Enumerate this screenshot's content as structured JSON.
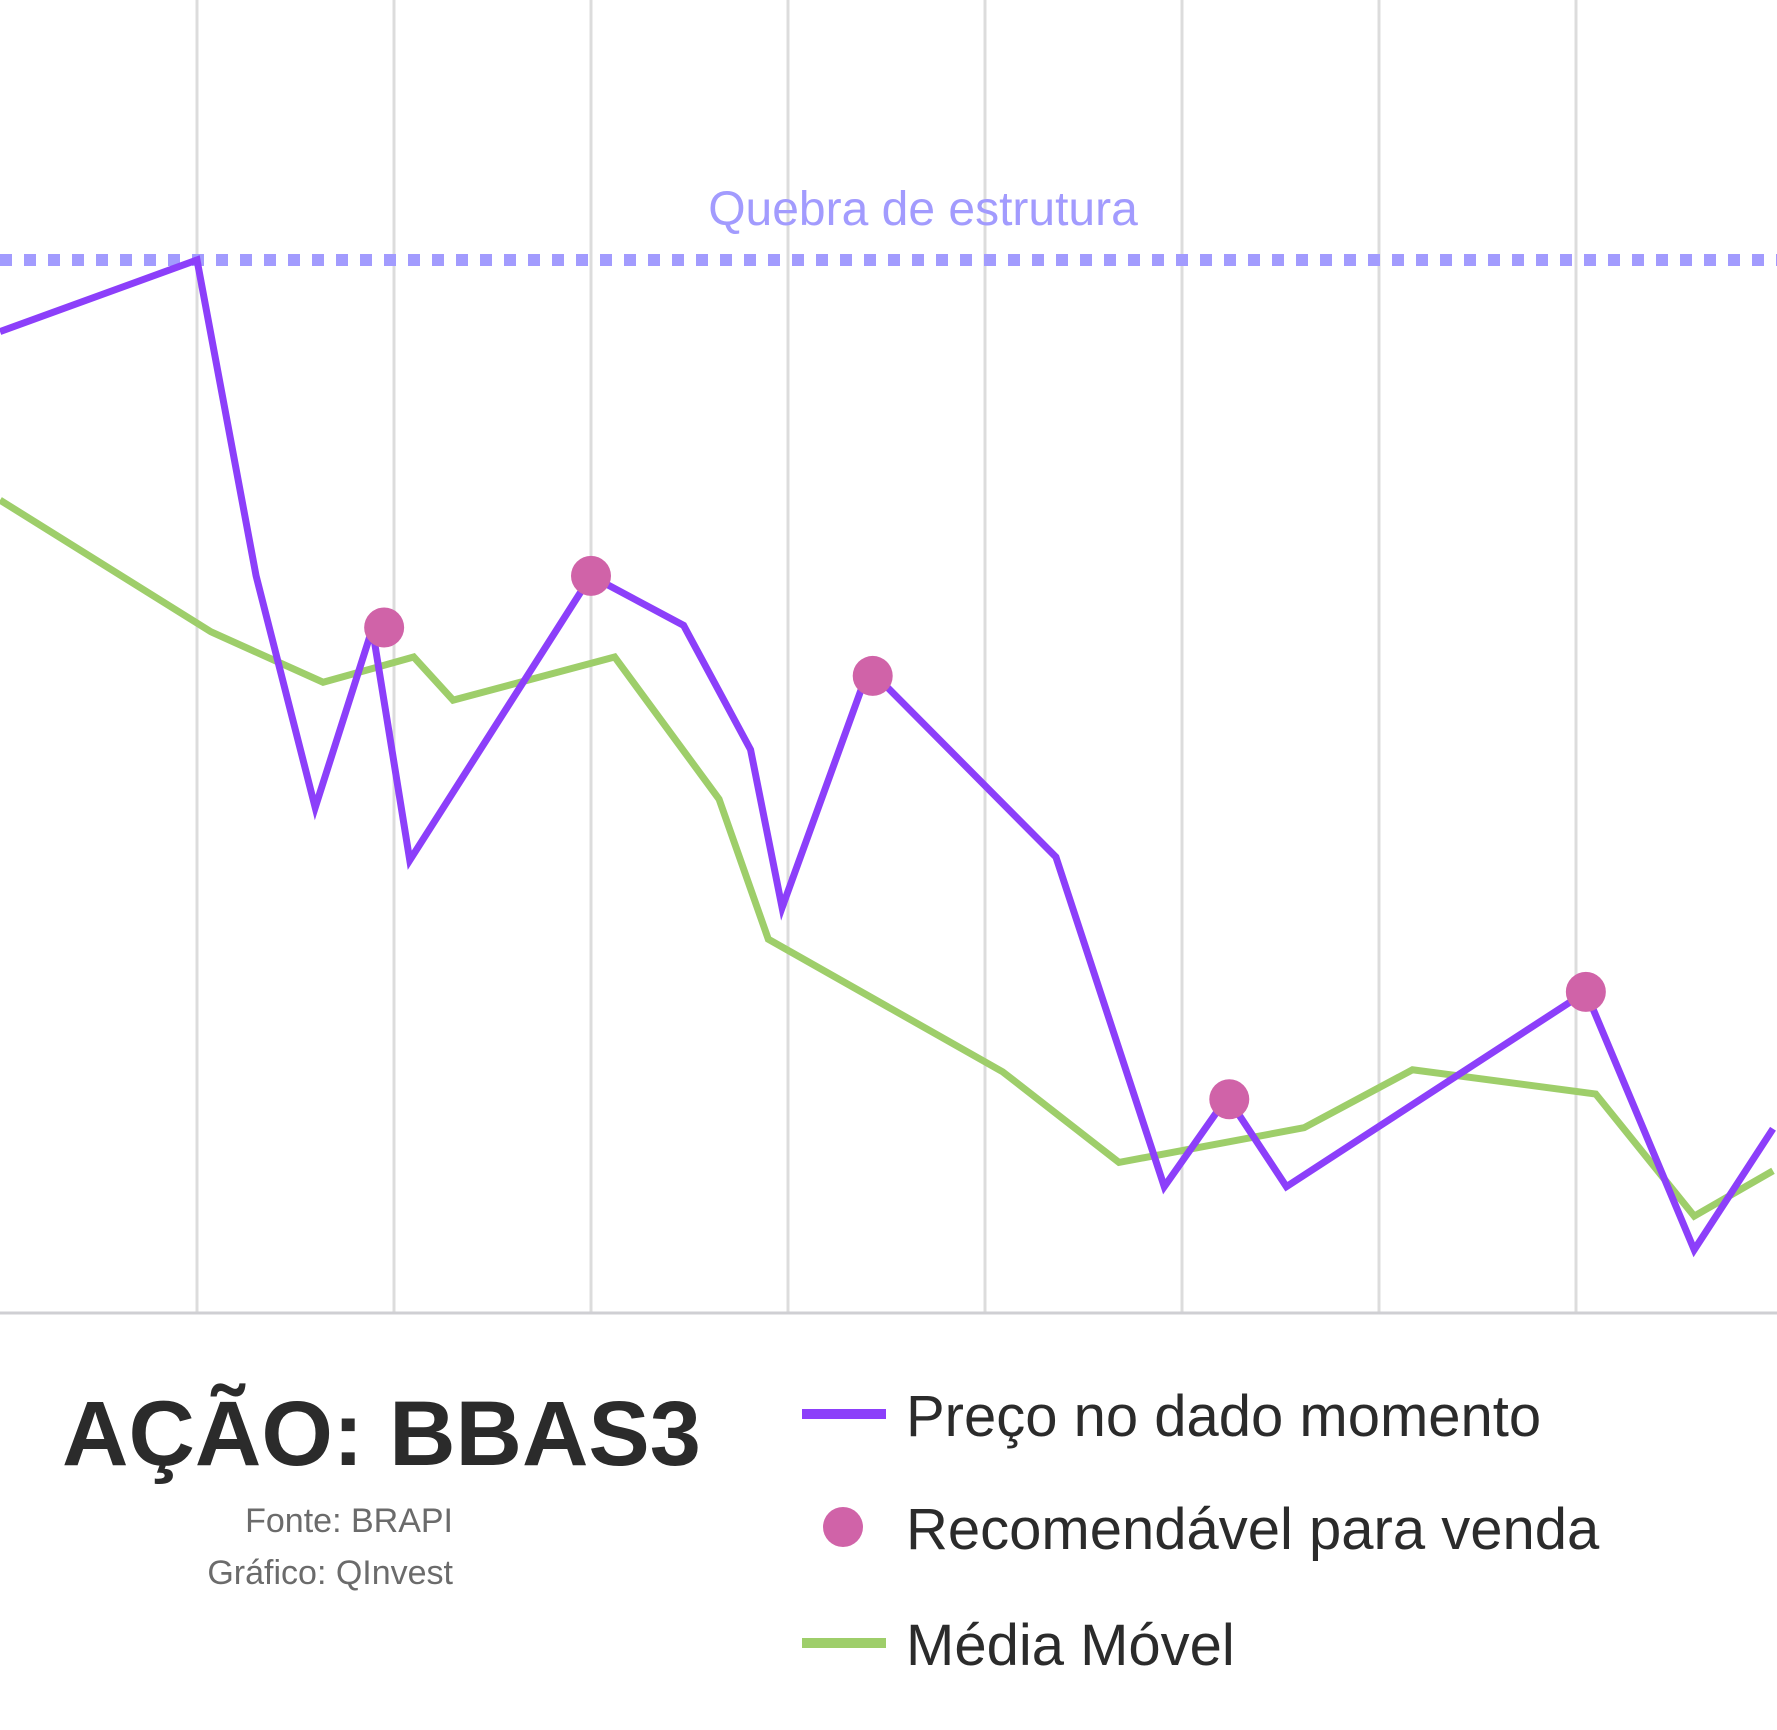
{
  "chart_data": {
    "type": "line",
    "title": "AÇÃO: BBAS3",
    "source": "Fonte: BRAPI",
    "credit": "Gráfico: QInvest",
    "grid": "vertical",
    "ylim": [
      0,
      100
    ],
    "annotation": {
      "label": "Quebra de estrutura",
      "y": 100,
      "style": "dotted",
      "color": "#a29bfe"
    },
    "series": [
      {
        "name": "Preço no dado momento",
        "color": "#8c3ffa",
        "points": [
          [
            0,
            93.2
          ],
          [
            1.0,
            100
          ],
          [
            1.3,
            70
          ],
          [
            1.6,
            48
          ],
          [
            1.89,
            65
          ],
          [
            2.08,
            43
          ],
          [
            3.0,
            70
          ],
          [
            3.47,
            65.3
          ],
          [
            3.81,
            53.5
          ],
          [
            3.97,
            38.5
          ],
          [
            4.41,
            61.2
          ],
          [
            5.36,
            43.3
          ],
          [
            5.91,
            12
          ],
          [
            6.23,
            20.5
          ],
          [
            6.53,
            12
          ],
          [
            8.05,
            30.5
          ],
          [
            8.6,
            6
          ],
          [
            9.0,
            17.5
          ]
        ]
      },
      {
        "name": "Média Móvel",
        "color": "#9ece6a",
        "points": [
          [
            0,
            77.2
          ],
          [
            1.07,
            64.7
          ],
          [
            1.64,
            59.9
          ],
          [
            2.1,
            62.3
          ],
          [
            2.3,
            58.2
          ],
          [
            3.12,
            62.3
          ],
          [
            3.65,
            48.8
          ],
          [
            3.9,
            35.5
          ],
          [
            5.09,
            22.9
          ],
          [
            5.68,
            14.3
          ],
          [
            6.62,
            17.6
          ],
          [
            7.17,
            23.1
          ],
          [
            8.1,
            20.8
          ],
          [
            8.6,
            9.2
          ],
          [
            9.0,
            13.5
          ]
        ]
      },
      {
        "name": "Recomendável para venda",
        "color": "#d063a8",
        "marker": "circle",
        "points": [
          [
            1.95,
            65.1
          ],
          [
            3.0,
            70.0
          ],
          [
            4.43,
            60.5
          ],
          [
            6.24,
            20.3
          ],
          [
            8.05,
            30.5
          ]
        ]
      }
    ],
    "legend": [
      {
        "label": "Preço no dado momento",
        "type": "line",
        "color": "#8c3ffa"
      },
      {
        "label": "Recomendável para venda",
        "type": "dot",
        "color": "#d063a8"
      },
      {
        "label": "Média Móvel",
        "type": "line",
        "color": "#9ece6a"
      }
    ]
  }
}
